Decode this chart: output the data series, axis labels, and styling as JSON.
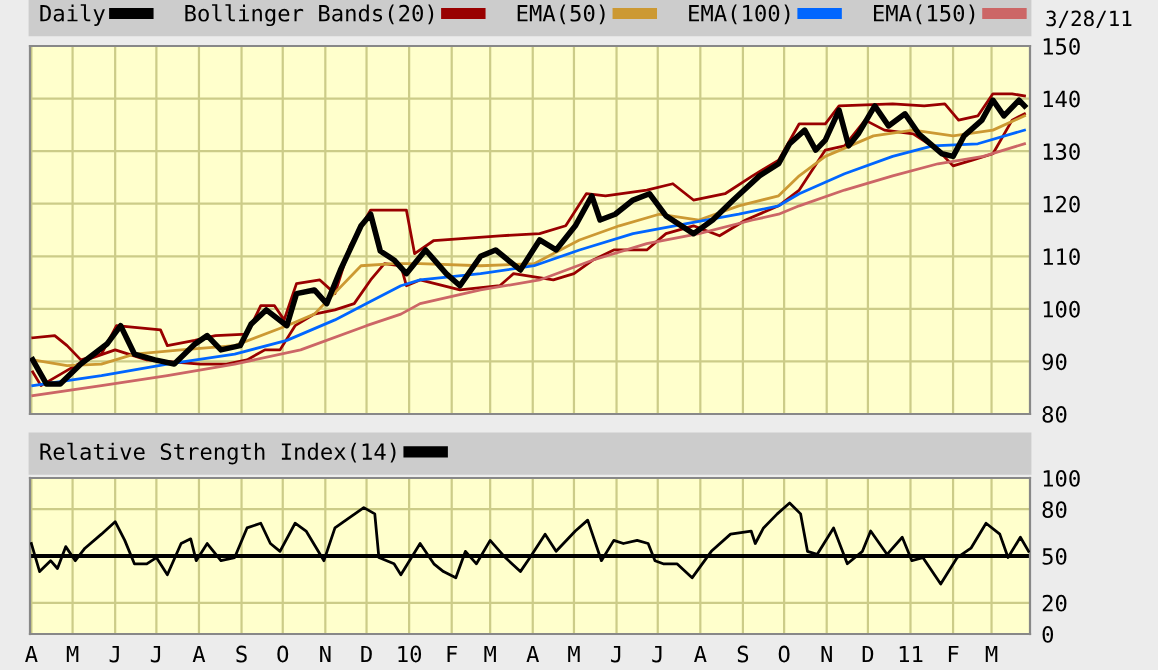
{
  "chart_data": [
    {
      "type": "line",
      "legend": "top",
      "grid": true,
      "tick_labels": "y",
      "annotations": [
        "3/28/11"
      ],
      "xlim": [
        "2009-03-31",
        "2011-03-29"
      ],
      "xticks": [
        {
          "value": "2009-04-01",
          "label": null
        },
        {
          "value": "2009-05-01",
          "label": null
        },
        {
          "value": "2009-06-01",
          "label": null
        },
        {
          "value": "2009-07-01",
          "label": null
        },
        {
          "value": "2009-08-01",
          "label": null
        },
        {
          "value": "2009-09-01",
          "label": null
        },
        {
          "value": "2009-10-01",
          "label": null
        },
        {
          "value": "2009-11-01",
          "label": null
        },
        {
          "value": "2009-12-01",
          "label": null
        },
        {
          "value": "2010-01-01",
          "label": null
        },
        {
          "value": "2010-02-01",
          "label": null
        },
        {
          "value": "2010-03-01",
          "label": null
        },
        {
          "value": "2010-04-01",
          "label": null
        },
        {
          "value": "2010-05-01",
          "label": null
        },
        {
          "value": "2010-06-01",
          "label": null
        },
        {
          "value": "2010-07-01",
          "label": null
        },
        {
          "value": "2010-08-01",
          "label": null
        },
        {
          "value": "2010-09-01",
          "label": null
        },
        {
          "value": "2010-10-01",
          "label": null
        },
        {
          "value": "2010-11-01",
          "label": null
        },
        {
          "value": "2010-12-01",
          "label": null
        },
        {
          "value": "2011-01-01",
          "label": null
        },
        {
          "value": "2011-02-01",
          "label": null
        },
        {
          "value": "2011-03-01",
          "label": null
        }
      ],
      "ylim": [
        80,
        150
      ],
      "yticks": [
        80,
        90,
        100,
        110,
        120,
        130,
        140,
        150
      ],
      "series": [
        {
          "name": "Daily",
          "color": "#000000",
          "x": [
            "2009-04-02",
            "2009-04-12",
            "2009-04-22",
            "2009-05-07",
            "2009-05-26",
            "2009-06-05",
            "2009-06-15",
            "2009-06-30",
            "2009-07-14",
            "2009-07-29",
            "2009-08-07",
            "2009-08-17",
            "2009-08-31",
            "2009-09-08",
            "2009-09-19",
            "2009-10-04",
            "2009-10-11",
            "2009-10-24",
            "2009-11-02",
            "2009-11-12",
            "2009-11-27",
            "2009-12-04",
            "2009-12-11",
            "2009-12-21",
            "2009-12-30",
            "2010-01-13",
            "2010-01-28",
            "2010-02-07",
            "2010-02-22",
            "2010-03-05",
            "2010-03-23",
            "2010-04-06",
            "2010-04-18",
            "2010-05-02",
            "2010-05-14",
            "2010-05-20",
            "2010-05-31",
            "2010-06-13",
            "2010-06-25",
            "2010-07-07",
            "2010-07-27",
            "2010-08-10",
            "2010-08-25",
            "2010-09-13",
            "2010-09-27",
            "2010-10-05",
            "2010-10-16",
            "2010-10-24",
            "2010-10-31",
            "2010-11-10",
            "2010-11-17",
            "2010-11-24",
            "2010-12-06",
            "2010-12-16",
            "2010-12-28",
            "2011-01-07",
            "2011-01-24",
            "2011-02-01",
            "2011-02-09",
            "2011-02-22",
            "2011-03-02",
            "2011-03-10",
            "2011-03-21",
            "2011-03-25"
          ],
          "values": [
            90.3,
            85.7,
            85.7,
            89.5,
            93.3,
            96.8,
            91.4,
            90.3,
            89.5,
            93.3,
            94.9,
            92.2,
            93,
            97.1,
            99.8,
            96.8,
            102.9,
            103.6,
            101,
            107.4,
            115.8,
            118,
            111,
            109.3,
            106.7,
            111.2,
            106.7,
            104.4,
            110,
            111.2,
            107.4,
            113.1,
            111.2,
            115.8,
            121.5,
            116.9,
            118,
            120.7,
            121.9,
            117.7,
            114.3,
            116.9,
            120.7,
            125.3,
            127.6,
            131.4,
            134,
            130.2,
            132.1,
            137.8,
            131,
            133.3,
            138.6,
            134.8,
            137.1,
            133.3,
            129.5,
            129,
            132.9,
            135.9,
            139.7,
            136.7,
            139.7,
            138.6
          ]
        },
        {
          "name": "Bollinger Bands(20)",
          "color": "#990000",
          "x": [
            "2009-04-02",
            "2009-04-18",
            "2009-04-27",
            "2009-05-07",
            "2009-05-22",
            "2009-06-02",
            "2009-07-04",
            "2009-07-09",
            "2009-07-29",
            "2009-08-13",
            "2009-09-05",
            "2009-09-15",
            "2009-09-25",
            "2009-10-02",
            "2009-10-11",
            "2009-10-28",
            "2009-11-08",
            "2009-11-19",
            "2009-12-04",
            "2009-12-30",
            "2010-01-05",
            "2010-01-19",
            "2010-03-08",
            "2010-04-06",
            "2010-04-25",
            "2010-05-10",
            "2010-05-24",
            "2010-06-23",
            "2010-07-12",
            "2010-07-27",
            "2010-08-19",
            "2010-09-08",
            "2010-09-27",
            "2010-10-12",
            "2010-10-31",
            "2010-11-10",
            "2010-12-19",
            "2011-01-11",
            "2011-01-26",
            "2011-02-05",
            "2011-02-19",
            "2011-03-02",
            "2011-03-16",
            "2011-03-25"
          ],
          "values": [
            94.5,
            94.9,
            93,
            90.3,
            91.4,
            96.8,
            96,
            93,
            94,
            94.9,
            95.2,
            100.6,
            100.6,
            97.9,
            104.8,
            105.5,
            102.9,
            112,
            118.8,
            118.8,
            110.5,
            113,
            113.9,
            114.3,
            115.8,
            121.9,
            121.5,
            122.6,
            123.8,
            120.7,
            121.9,
            125.3,
            128.3,
            135.2,
            135.2,
            138.6,
            139,
            138.6,
            139,
            135.9,
            136.7,
            140.9,
            140.9,
            140.5
          ]
        },
        {
          "color": "#990000",
          "x": [
            "2009-04-02",
            "2009-04-08",
            "2009-05-03",
            "2009-05-11",
            "2009-06-01",
            "2009-06-24",
            "2009-08-02",
            "2009-08-21",
            "2009-09-05",
            "2009-09-18",
            "2009-09-29",
            "2009-10-10",
            "2009-10-24",
            "2009-11-08",
            "2009-11-22",
            "2009-12-04",
            "2009-12-14",
            "2009-12-26",
            "2009-12-30",
            "2010-01-09",
            "2010-02-07",
            "2010-03-08",
            "2010-03-18",
            "2010-04-16",
            "2010-05-01",
            "2010-05-15",
            "2010-05-30",
            "2010-06-23",
            "2010-07-07",
            "2010-07-27",
            "2010-08-15",
            "2010-09-03",
            "2010-09-27",
            "2010-10-12",
            "2010-10-31",
            "2010-11-14",
            "2010-11-29",
            "2010-12-13",
            "2011-01-03",
            "2011-01-21",
            "2011-02-01",
            "2011-02-15",
            "2011-03-02",
            "2011-03-16",
            "2011-03-25"
          ],
          "values": [
            88,
            85.4,
            89.2,
            90.3,
            92.2,
            90.3,
            89.5,
            89.5,
            90.3,
            92.2,
            92.2,
            96.8,
            99,
            99.8,
            101,
            105.5,
            108.6,
            108.2,
            104.4,
            105.5,
            103.6,
            104.4,
            106.7,
            105.5,
            106.7,
            109.3,
            111.2,
            111.2,
            114.3,
            115.8,
            113.9,
            116.9,
            119.6,
            122.6,
            130.2,
            131,
            135.9,
            134,
            133.3,
            130.2,
            127.2,
            128.3,
            129.5,
            135.9,
            137.1
          ]
        },
        {
          "name": "EMA(50)",
          "color": "#cc9933",
          "x": [
            "2009-04-02",
            "2009-04-27",
            "2009-05-22",
            "2009-06-15",
            "2009-07-19",
            "2009-08-27",
            "2009-10-04",
            "2009-10-24",
            "2009-11-27",
            "2009-12-21",
            "2010-01-09",
            "2010-02-22",
            "2010-04-02",
            "2010-05-05",
            "2010-06-03",
            "2010-07-02",
            "2010-07-31",
            "2010-08-29",
            "2010-09-27",
            "2010-10-12",
            "2010-10-31",
            "2010-12-05",
            "2011-01-03",
            "2011-02-01",
            "2011-03-02",
            "2011-03-25"
          ],
          "values": [
            90.3,
            89.2,
            89.5,
            91.4,
            92.2,
            93,
            96.8,
            99,
            108.2,
            108.6,
            108.6,
            108.2,
            108.6,
            113.1,
            115.8,
            118,
            116.9,
            119.6,
            121.5,
            125.3,
            129,
            132.9,
            134,
            132.9,
            134,
            136.7
          ]
        },
        {
          "name": "EMA(100)",
          "color": "#0066ff",
          "x": [
            "2009-04-02",
            "2009-05-22",
            "2009-07-09",
            "2009-08-27",
            "2009-10-04",
            "2009-11-08",
            "2009-12-01",
            "2009-12-26",
            "2010-01-09",
            "2010-02-22",
            "2010-04-02",
            "2010-05-05",
            "2010-06-13",
            "2010-07-22",
            "2010-08-29",
            "2010-09-27",
            "2010-10-12",
            "2010-11-14",
            "2010-12-19",
            "2011-01-17",
            "2011-02-19",
            "2011-03-25"
          ],
          "values": [
            85.4,
            87.3,
            89.5,
            91.4,
            94,
            97.9,
            101,
            104.4,
            105.5,
            106.7,
            108.2,
            111.2,
            114.3,
            116.2,
            118,
            119.6,
            121.9,
            125.7,
            129,
            131,
            131.4,
            134
          ]
        },
        {
          "name": "EMA(150)",
          "color": "#cc6666",
          "x": [
            "2009-04-02",
            "2009-05-22",
            "2009-07-09",
            "2009-08-27",
            "2009-10-14",
            "2009-12-01",
            "2009-12-26",
            "2010-01-09",
            "2010-02-22",
            "2010-04-06",
            "2010-05-15",
            "2010-06-23",
            "2010-07-31",
            "2010-09-08",
            "2010-09-27",
            "2010-10-12",
            "2010-11-14",
            "2010-12-19",
            "2011-01-21",
            "2011-02-23",
            "2011-03-25"
          ],
          "values": [
            83.5,
            85.4,
            87.3,
            89.5,
            92.2,
            96.8,
            99,
            101,
            103.6,
            105.5,
            109.3,
            112.4,
            114.3,
            116.9,
            118,
            119.6,
            122.6,
            125.3,
            127.6,
            129,
            131.4
          ]
        }
      ]
    },
    {
      "type": "line",
      "legend": "top",
      "grid": true,
      "xlim": [
        "2009-03-31",
        "2011-03-29"
      ],
      "xticks": [
        {
          "value": "2009-04-01",
          "label": "A"
        },
        {
          "value": "2009-05-01",
          "label": "M"
        },
        {
          "value": "2009-06-01",
          "label": "J"
        },
        {
          "value": "2009-07-01",
          "label": "J"
        },
        {
          "value": "2009-08-01",
          "label": "A"
        },
        {
          "value": "2009-09-01",
          "label": "S"
        },
        {
          "value": "2009-10-01",
          "label": "O"
        },
        {
          "value": "2009-11-01",
          "label": "N"
        },
        {
          "value": "2009-12-01",
          "label": "D"
        },
        {
          "value": "2010-01-01",
          "label": "10"
        },
        {
          "value": "2010-02-01",
          "label": "F"
        },
        {
          "value": "2010-03-01",
          "label": "M"
        },
        {
          "value": "2010-04-01",
          "label": "A"
        },
        {
          "value": "2010-05-01",
          "label": "M"
        },
        {
          "value": "2010-06-01",
          "label": "J"
        },
        {
          "value": "2010-07-01",
          "label": "J"
        },
        {
          "value": "2010-08-01",
          "label": "A"
        },
        {
          "value": "2010-09-01",
          "label": "S"
        },
        {
          "value": "2010-10-01",
          "label": "O"
        },
        {
          "value": "2010-11-01",
          "label": "N"
        },
        {
          "value": "2010-12-01",
          "label": "D"
        },
        {
          "value": "2011-01-01",
          "label": "11"
        },
        {
          "value": "2011-02-01",
          "label": "F"
        },
        {
          "value": "2011-03-01",
          "label": "M"
        }
      ],
      "ylim": [
        0,
        100
      ],
      "yticks": [
        0,
        20,
        50,
        80,
        100
      ],
      "ref_lines": [
        {
          "axis": "y",
          "value": 50,
          "color": "#000000"
        }
      ],
      "series": [
        {
          "name": "Relative Strength Index(14)",
          "color": "#000000",
          "x": [
            "2009-04-01",
            "2009-04-07",
            "2009-04-15",
            "2009-04-20",
            "2009-04-26",
            "2009-05-03",
            "2009-05-10",
            "2009-05-22",
            "2009-06-01",
            "2009-06-08",
            "2009-06-15",
            "2009-06-24",
            "2009-07-01",
            "2009-07-09",
            "2009-07-19",
            "2009-07-26",
            "2009-07-30",
            "2009-08-07",
            "2009-08-17",
            "2009-08-27",
            "2009-09-05",
            "2009-09-15",
            "2009-09-22",
            "2009-09-29",
            "2009-10-10",
            "2009-10-18",
            "2009-10-31",
            "2009-11-08",
            "2009-11-16",
            "2009-11-29",
            "2009-12-07",
            "2009-12-10",
            "2009-12-21",
            "2009-12-26",
            "2010-01-09",
            "2010-01-19",
            "2010-01-26",
            "2010-02-04",
            "2010-02-11",
            "2010-02-19",
            "2010-03-01",
            "2010-03-12",
            "2010-03-23",
            "2010-03-30",
            "2010-04-10",
            "2010-04-18",
            "2010-05-02",
            "2010-05-11",
            "2010-05-21",
            "2010-05-30",
            "2010-06-06",
            "2010-06-16",
            "2010-06-24",
            "2010-06-29",
            "2010-07-05",
            "2010-07-15",
            "2010-07-26",
            "2010-08-09",
            "2010-08-23",
            "2010-09-07",
            "2010-09-10",
            "2010-09-16",
            "2010-09-26",
            "2010-10-05",
            "2010-10-13",
            "2010-10-18",
            "2010-10-25",
            "2010-11-06",
            "2010-11-16",
            "2010-11-27",
            "2010-12-03",
            "2010-12-15",
            "2010-12-26",
            "2011-01-02",
            "2011-01-10",
            "2011-01-23",
            "2011-02-04",
            "2011-02-14",
            "2011-02-25",
            "2011-03-07",
            "2011-03-13",
            "2011-03-22",
            "2011-03-28"
          ],
          "values": [
            58,
            40,
            47,
            42,
            56,
            47,
            55,
            64,
            72,
            60,
            45,
            45,
            49,
            38,
            58,
            61,
            47,
            58,
            47,
            49,
            68,
            71,
            58,
            53,
            71,
            66,
            47,
            68,
            73,
            81,
            77,
            49,
            45,
            38,
            58,
            45,
            40,
            36,
            53,
            45,
            60,
            49,
            40,
            49,
            64,
            53,
            66,
            73,
            47,
            60,
            58,
            60,
            58,
            47,
            45,
            45,
            36,
            53,
            64,
            66,
            58,
            68,
            77,
            84,
            77,
            53,
            51,
            68,
            45,
            53,
            66,
            51,
            62,
            47,
            49,
            32,
            49,
            55,
            71,
            64,
            49,
            62,
            53
          ]
        }
      ]
    }
  ]
}
